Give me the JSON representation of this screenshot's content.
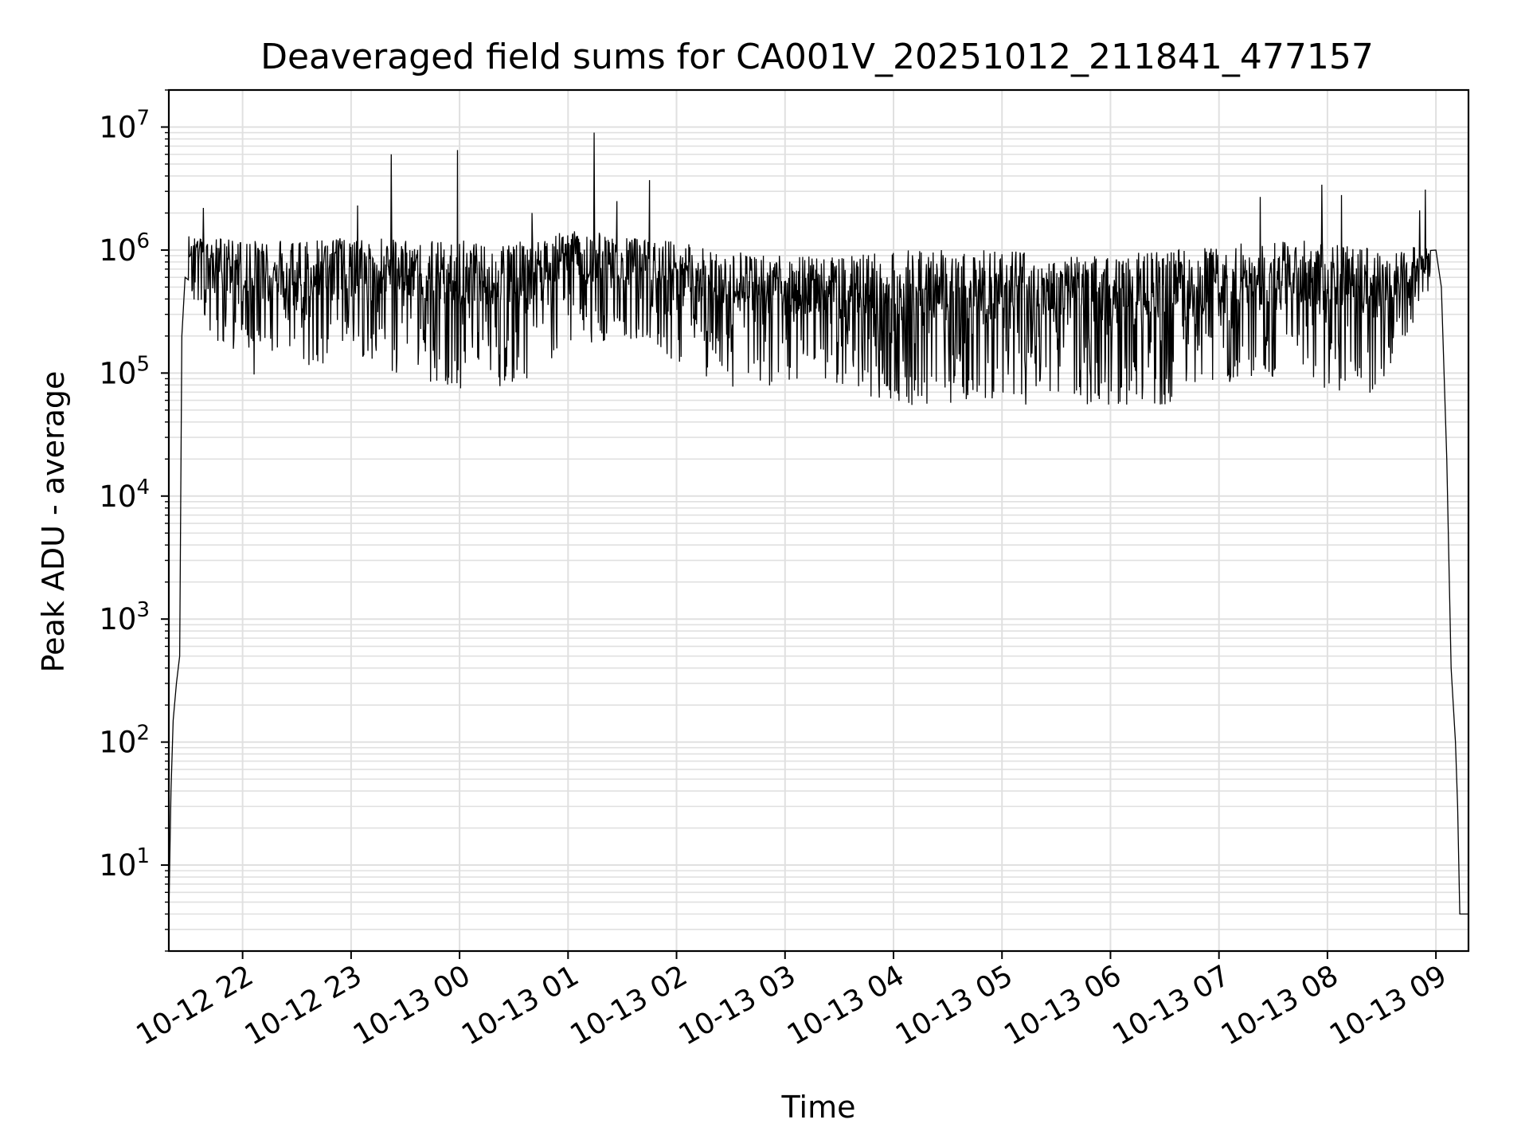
{
  "chart_data": {
    "type": "line",
    "title": "Deaveraged field sums for CA001V_20251012_211841_477157",
    "xlabel": "Time",
    "ylabel": "Peak ADU - average",
    "yscale": "log",
    "grid": true,
    "line_color": "#000000",
    "grid_color": "#e0e0e0",
    "xlim_hours": [
      -0.68,
      11.3
    ],
    "ylim": [
      2,
      20000000
    ],
    "x_ticks": [
      {
        "hour": 0,
        "label": "10-12 22"
      },
      {
        "hour": 1,
        "label": "10-12 23"
      },
      {
        "hour": 2,
        "label": "10-13 00"
      },
      {
        "hour": 3,
        "label": "10-13 01"
      },
      {
        "hour": 4,
        "label": "10-13 02"
      },
      {
        "hour": 5,
        "label": "10-13 03"
      },
      {
        "hour": 6,
        "label": "10-13 04"
      },
      {
        "hour": 7,
        "label": "10-13 05"
      },
      {
        "hour": 8,
        "label": "10-13 06"
      },
      {
        "hour": 9,
        "label": "10-13 07"
      },
      {
        "hour": 10,
        "label": "10-13 08"
      },
      {
        "hour": 11,
        "label": "10-13 09"
      }
    ],
    "y_ticks": [
      {
        "value": 10,
        "base": "10",
        "exp": "1"
      },
      {
        "value": 100,
        "base": "10",
        "exp": "2"
      },
      {
        "value": 1000,
        "base": "10",
        "exp": "3"
      },
      {
        "value": 10000,
        "base": "10",
        "exp": "4"
      },
      {
        "value": 100000,
        "base": "10",
        "exp": "5"
      },
      {
        "value": 1000000,
        "base": "10",
        "exp": "6"
      },
      {
        "value": 10000000,
        "base": "10",
        "exp": "7"
      }
    ],
    "series": [
      {
        "name": "deaveraged field sum",
        "envelope_points": [
          {
            "hour": -0.68,
            "value": 4
          },
          {
            "hour": -0.66,
            "value": 40
          },
          {
            "hour": -0.64,
            "value": 150
          },
          {
            "hour": -0.61,
            "value": 300
          },
          {
            "hour": -0.58,
            "value": 500
          },
          {
            "hour": -0.56,
            "value": 200000
          },
          {
            "hour": -0.53,
            "value": 600000
          },
          {
            "hour": -0.5,
            "value": 900000
          },
          {
            "hour": 10.95,
            "value": 900000
          },
          {
            "hour": 11.0,
            "value": 1000000
          },
          {
            "hour": 11.05,
            "value": 500000
          },
          {
            "hour": 11.1,
            "value": 20000
          },
          {
            "hour": 11.14,
            "value": 400
          },
          {
            "hour": 11.18,
            "value": 100
          },
          {
            "hour": 11.2,
            "value": 30
          },
          {
            "hour": 11.22,
            "value": 4
          },
          {
            "hour": 11.3,
            "value": 4
          }
        ],
        "band": [
          {
            "hour": -0.5,
            "low": 400000,
            "high": 1300000
          },
          {
            "hour": 0.0,
            "low": 90000,
            "high": 1200000
          },
          {
            "hour": 0.5,
            "low": 90000,
            "high": 1200000
          },
          {
            "hour": 1.0,
            "low": 150000,
            "high": 1300000
          },
          {
            "hour": 1.5,
            "low": 90000,
            "high": 1200000
          },
          {
            "hour": 2.0,
            "low": 75000,
            "high": 1200000
          },
          {
            "hour": 2.5,
            "low": 75000,
            "high": 1200000
          },
          {
            "hour": 3.0,
            "low": 150000,
            "high": 1500000
          },
          {
            "hour": 3.5,
            "low": 200000,
            "high": 1300000
          },
          {
            "hour": 4.0,
            "low": 120000,
            "high": 1200000
          },
          {
            "hour": 4.5,
            "low": 75000,
            "high": 1000000
          },
          {
            "hour": 5.0,
            "low": 80000,
            "high": 900000
          },
          {
            "hour": 5.5,
            "low": 80000,
            "high": 900000
          },
          {
            "hour": 6.0,
            "low": 55000,
            "high": 1000000
          },
          {
            "hour": 6.5,
            "low": 55000,
            "high": 1000000
          },
          {
            "hour": 7.0,
            "low": 55000,
            "high": 1000000
          },
          {
            "hour": 7.5,
            "low": 55000,
            "high": 900000
          },
          {
            "hour": 8.0,
            "low": 52000,
            "high": 900000
          },
          {
            "hour": 8.5,
            "low": 55000,
            "high": 1000000
          },
          {
            "hour": 9.0,
            "low": 90000,
            "high": 1100000
          },
          {
            "hour": 9.5,
            "low": 65000,
            "high": 1200000
          },
          {
            "hour": 10.0,
            "low": 65000,
            "high": 1200000
          },
          {
            "hour": 10.5,
            "low": 70000,
            "high": 1000000
          },
          {
            "hour": 10.95,
            "low": 500000,
            "high": 1100000
          }
        ],
        "spikes": [
          {
            "hour": -0.36,
            "value": 2200000
          },
          {
            "hour": 1.06,
            "value": 2300000
          },
          {
            "hour": 1.37,
            "value": 6000000
          },
          {
            "hour": 1.98,
            "value": 6500000
          },
          {
            "hour": 2.67,
            "value": 2000000
          },
          {
            "hour": 3.24,
            "value": 9000000
          },
          {
            "hour": 3.45,
            "value": 2500000
          },
          {
            "hour": 3.75,
            "value": 3700000
          },
          {
            "hour": 9.38,
            "value": 2700000
          },
          {
            "hour": 9.95,
            "value": 3400000
          },
          {
            "hour": 10.13,
            "value": 2800000
          },
          {
            "hour": 10.9,
            "value": 3100000
          },
          {
            "hour": 10.85,
            "value": 2100000
          }
        ]
      }
    ]
  }
}
